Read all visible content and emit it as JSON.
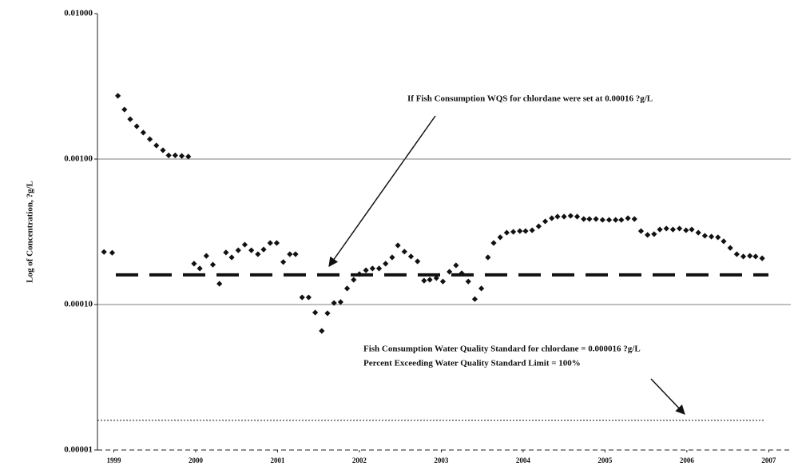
{
  "chart_data": {
    "type": "scatter",
    "y_label": "Log of Concentration, ?g/L",
    "color": "#111111",
    "xlim": [
      1998.8,
      2007.27
    ],
    "xticks": [
      1999,
      2000,
      2001,
      2002,
      2003,
      2004,
      2005,
      2006,
      2007
    ],
    "ylim": [
      1e-05,
      0.01
    ],
    "yscale": "log",
    "yticks": [
      {
        "value": 1e-05,
        "label": "0.00001"
      },
      {
        "value": 0.0001,
        "label": "0.00010"
      },
      {
        "value": 0.001,
        "label": "0.00100"
      },
      {
        "value": 0.01,
        "label": "0.01000"
      }
    ],
    "grid": true,
    "reference_lines": [
      {
        "value": 0.00016,
        "style": "dashed"
      },
      {
        "value": 1.6e-05,
        "style": "dotted"
      }
    ],
    "annotations": [
      "If Fish Consumption WQS for chlordane were set at 0.00016 ?g/L",
      "Fish Consumption Water Quality Standard for chlordane = 0.000016 ?g/L",
      "Percent Exceeding Water Quality Standard Limit = 100%"
    ],
    "x": [
      1998.88,
      1998.98,
      1999.05,
      1999.13,
      1999.2,
      1999.28,
      1999.36,
      1999.44,
      1999.52,
      1999.6,
      1999.67,
      1999.75,
      1999.83,
      1999.91,
      1999.98,
      2000.05,
      2000.13,
      2000.21,
      2000.29,
      2000.37,
      2000.44,
      2000.52,
      2000.6,
      2000.68,
      2000.76,
      2000.83,
      2000.91,
      2000.99,
      2001.07,
      2001.15,
      2001.22,
      2001.3,
      2001.38,
      2001.46,
      2001.54,
      2001.61,
      2001.69,
      2001.77,
      2001.85,
      2001.93,
      2002.0,
      2002.08,
      2002.16,
      2002.24,
      2002.32,
      2002.4,
      2002.47,
      2002.55,
      2002.63,
      2002.71,
      2002.79,
      2002.86,
      2002.94,
      2003.02,
      2003.1,
      2003.18,
      2003.25,
      2003.33,
      2003.41,
      2003.49,
      2003.57,
      2003.64,
      2003.72,
      2003.8,
      2003.88,
      2003.96,
      2004.03,
      2004.11,
      2004.19,
      2004.27,
      2004.35,
      2004.42,
      2004.5,
      2004.58,
      2004.66,
      2004.74,
      2004.81,
      2004.89,
      2004.97,
      2005.05,
      2005.13,
      2005.2,
      2005.28,
      2005.36,
      2005.44,
      2005.52,
      2005.6,
      2005.67,
      2005.75,
      2005.83,
      2005.91,
      2005.99,
      2006.06,
      2006.14,
      2006.22,
      2006.3,
      2006.38,
      2006.45,
      2006.53,
      2006.61,
      2006.69,
      2006.77,
      2006.84,
      2006.92
    ],
    "values": [
      0.00023,
      0.000227,
      0.00272,
      0.00219,
      0.00188,
      0.00168,
      0.00152,
      0.00137,
      0.00124,
      0.00115,
      0.00106,
      0.00106,
      0.00105,
      0.00104,
      0.000191,
      0.000177,
      0.000216,
      0.000188,
      0.000139,
      0.000228,
      0.000211,
      0.000236,
      0.000258,
      0.000236,
      0.000222,
      0.000239,
      0.000265,
      0.000265,
      0.000196,
      0.000222,
      0.000222,
      0.000112,
      0.000112,
      8.81e-05,
      6.59e-05,
      8.71e-05,
      0.0001025,
      0.000104,
      0.000129,
      0.000148,
      0.000162,
      0.000172,
      0.000177,
      0.000177,
      0.000191,
      0.000211,
      0.000255,
      0.000231,
      0.000214,
      0.000198,
      0.000146,
      0.000148,
      0.000152,
      0.000144,
      0.000168,
      0.000186,
      0.000164,
      0.000144,
      0.000109,
      0.000129,
      0.000211,
      0.000265,
      0.00029,
      0.000312,
      0.000316,
      0.00032,
      0.00032,
      0.000324,
      0.000345,
      0.000373,
      0.000392,
      0.000402,
      0.000402,
      0.000407,
      0.000402,
      0.000387,
      0.000387,
      0.000387,
      0.000382,
      0.000382,
      0.000382,
      0.000382,
      0.000392,
      0.000387,
      0.00032,
      0.000301,
      0.000305,
      0.000328,
      0.000333,
      0.000328,
      0.000333,
      0.000324,
      0.000328,
      0.000312,
      0.000297,
      0.000293,
      0.00029,
      0.000272,
      0.000245,
      0.000222,
      0.000214,
      0.000216,
      0.000214,
      0.000208
    ]
  }
}
